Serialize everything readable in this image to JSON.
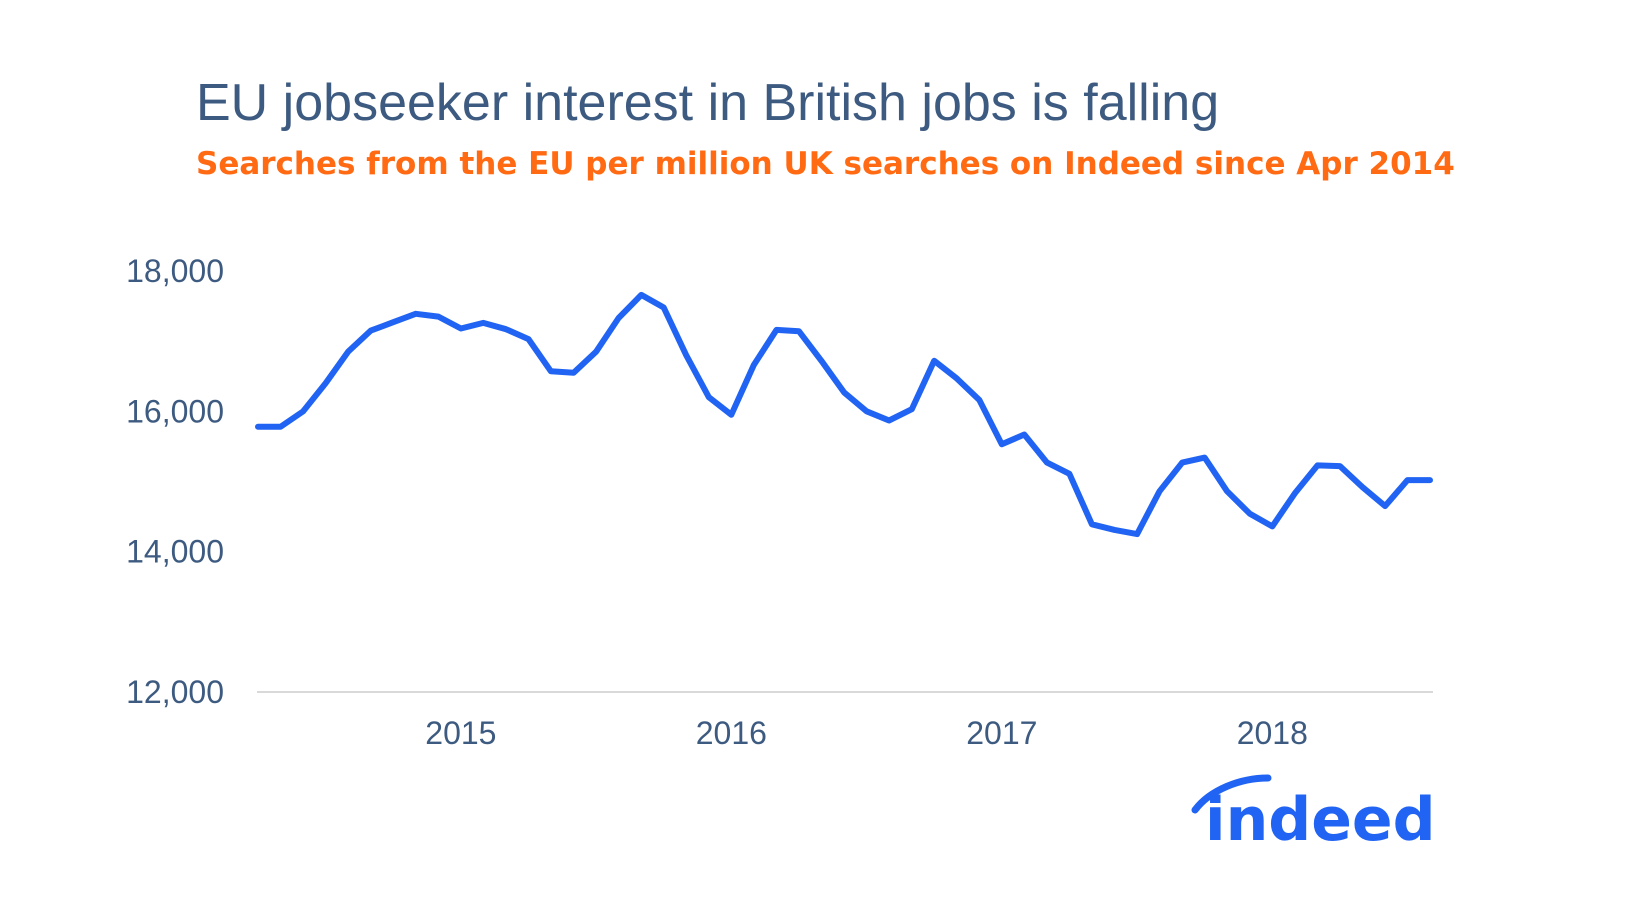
{
  "chart_data": {
    "type": "line",
    "title": "EU jobseeker interest in British jobs is falling",
    "subtitle": "Searches from the EU per million UK searches on Indeed since Apr 2014",
    "xlabel": "",
    "ylabel": "",
    "ylim": [
      12000,
      18000
    ],
    "yticks": [
      12000,
      14000,
      16000,
      18000
    ],
    "ytick_labels": [
      "12,000",
      "14,000",
      "16,000",
      "18,000"
    ],
    "xticks": [
      2015,
      2016,
      2017,
      2018
    ],
    "xtick_labels": [
      "2015",
      "2016",
      "2017",
      "2018"
    ],
    "xlim": [
      2014.25,
      2018.583
    ],
    "grid": false,
    "line_color": "#2164f3",
    "series": [
      {
        "x": [
          2014.25,
          2014.333,
          2014.417,
          2014.5,
          2014.583,
          2014.667,
          2014.75,
          2014.833,
          2014.917,
          2015.0,
          2015.083,
          2015.167,
          2015.25,
          2015.333,
          2015.417,
          2015.5,
          2015.583,
          2015.667,
          2015.75,
          2015.833,
          2015.917,
          2016.0,
          2016.083,
          2016.167,
          2016.25,
          2016.333,
          2016.417,
          2016.5,
          2016.583,
          2016.667,
          2016.75,
          2016.833,
          2016.917,
          2017.0,
          2017.083,
          2017.167,
          2017.25,
          2017.333,
          2017.417,
          2017.5,
          2017.583,
          2017.667,
          2017.75,
          2017.833,
          2017.917,
          2018.0,
          2018.083,
          2018.167,
          2018.25,
          2018.333,
          2018.417,
          2018.5,
          2018.583
        ],
        "values": [
          15780,
          15780,
          16000,
          16400,
          16850,
          17150,
          17270,
          17390,
          17350,
          17180,
          17260,
          17170,
          17030,
          16570,
          16550,
          16850,
          17330,
          17660,
          17480,
          16800,
          16200,
          15950,
          16660,
          17160,
          17140,
          16720,
          16270,
          16000,
          15870,
          16030,
          16720,
          16470,
          16160,
          15530,
          15670,
          15270,
          15110,
          14390,
          14310,
          14250,
          14860,
          15270,
          15340,
          14860,
          14540,
          14360,
          14830,
          15230,
          15220,
          14920,
          14650,
          15020,
          15020
        ]
      }
    ]
  },
  "logo": {
    "text": "indeed"
  }
}
